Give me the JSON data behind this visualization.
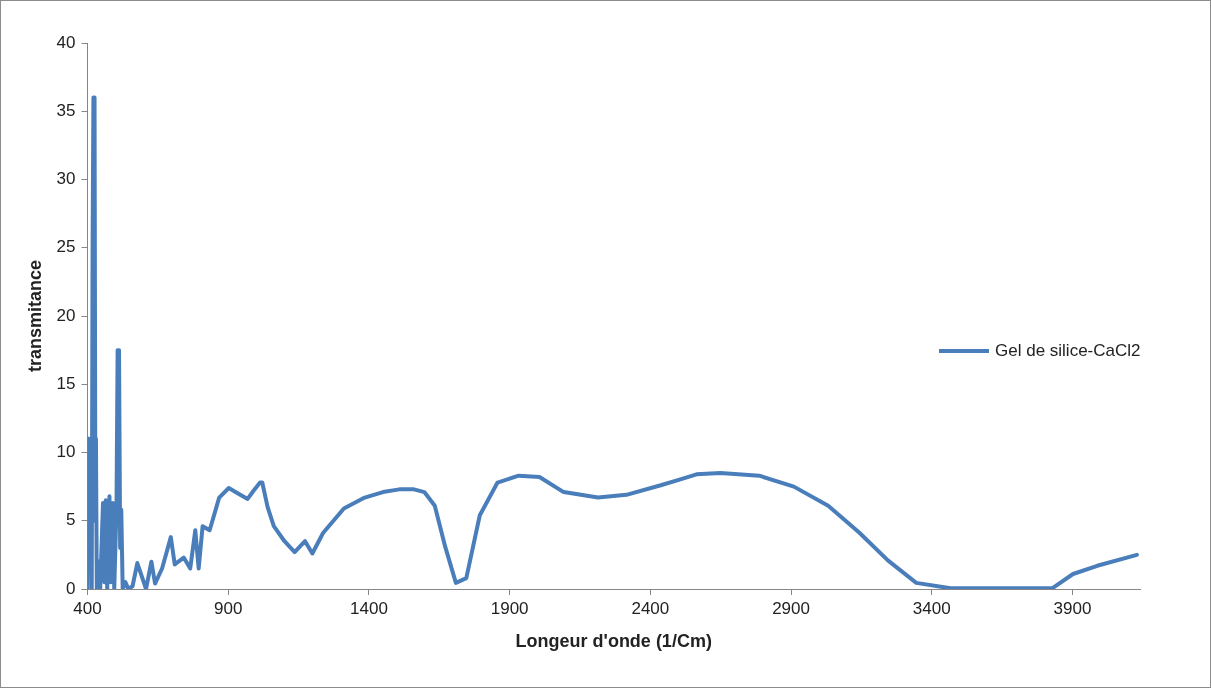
{
  "chart_data": {
    "type": "line",
    "xlabel": "Longeur d'onde (1/Cm)",
    "ylabel": "transmitance",
    "x": [
      400,
      402,
      405,
      410,
      415,
      418,
      421,
      425,
      428,
      430,
      433,
      440,
      445,
      455,
      460,
      465,
      470,
      478,
      483,
      490,
      495,
      503,
      507,
      512,
      516,
      520,
      525,
      535,
      545,
      560,
      577,
      608,
      627,
      640,
      665,
      696,
      710,
      742,
      765,
      783,
      795,
      809,
      834,
      868,
      902,
      935,
      969,
      990,
      1013,
      1021,
      1040,
      1062,
      1100,
      1136,
      1173,
      1199,
      1237,
      1311,
      1385,
      1450,
      1508,
      1560,
      1597,
      1634,
      1671,
      1709,
      1746,
      1794,
      1857,
      1932,
      2006,
      2092,
      2214,
      2315,
      2437,
      2501,
      2564,
      2649,
      2787,
      2910,
      3032,
      3144,
      3244,
      3345,
      3467,
      3600,
      3700,
      3828,
      3902,
      3988,
      4129
    ],
    "series": [
      {
        "name": "Gel de silice-CaCl2",
        "color": "#4a7ebb",
        "values": [
          0,
          11,
          2,
          11,
          0,
          25,
          36,
          36,
          5,
          11,
          0,
          2,
          0,
          6.3,
          0.5,
          6.5,
          0,
          6.8,
          0.5,
          6.3,
          0,
          6,
          17.5,
          17.5,
          3,
          5.8,
          0,
          0.5,
          0,
          0.2,
          1.9,
          0,
          2,
          0.4,
          1.5,
          3.8,
          1.8,
          2.3,
          1.5,
          4.3,
          1.5,
          4.6,
          4.3,
          6.7,
          7.4,
          7,
          6.6,
          7.2,
          7.8,
          7.8,
          6,
          4.6,
          3.5,
          2.7,
          3.5,
          2.6,
          4.1,
          5.9,
          6.7,
          7.1,
          7.3,
          7.3,
          7.1,
          6.1,
          3.1,
          0.45,
          0.8,
          5.4,
          7.8,
          8.3,
          8.2,
          7.1,
          6.7,
          6.9,
          7.6,
          8,
          8.4,
          8.5,
          8.3,
          7.5,
          6.1,
          4.1,
          2.1,
          0.45,
          0.05,
          0.05,
          0.05,
          0.05,
          1.1,
          1.7,
          2.5
        ]
      }
    ],
    "xlim": [
      400,
      4140
    ],
    "xticks": [
      400,
      900,
      1400,
      1900,
      2400,
      2900,
      3400,
      3900
    ],
    "ylim": [
      0,
      40
    ],
    "yticks": [
      0,
      5,
      10,
      15,
      20,
      25,
      30,
      35,
      40
    ],
    "grid": false,
    "legend": "right",
    "marker": "none",
    "line_style": "solid"
  }
}
